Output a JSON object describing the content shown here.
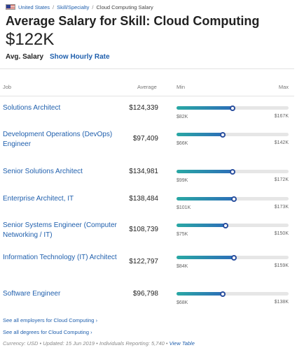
{
  "breadcrumb": {
    "country": "United States",
    "category": "Skill/Specialty",
    "current": "Cloud Computing Salary"
  },
  "header": {
    "title": "Average Salary for Skill: Cloud Computing",
    "avg_value": "$122K",
    "avg_label": "Avg. Salary",
    "hourly_link": "Show Hourly Rate"
  },
  "table": {
    "columns": {
      "job": "Job",
      "average": "Average",
      "min": "Min",
      "max": "Max"
    },
    "accent_start": "#29a8a4",
    "accent_end": "#2d6fb8",
    "rows": [
      {
        "job": "Solutions Architect",
        "average": "$124,339",
        "min": "$82K",
        "max": "$167K",
        "level": 0.5
      },
      {
        "job": "Development Operations (DevOps) Engineer",
        "average": "$97,409",
        "min": "$66K",
        "max": "$142K",
        "level": 0.41
      },
      {
        "job": "Senior Solutions Architect",
        "average": "$134,981",
        "min": "$99K",
        "max": "$172K",
        "level": 0.5
      },
      {
        "job": "Enterprise Architect, IT",
        "average": "$138,484",
        "min": "$101K",
        "max": "$173K",
        "level": 0.51
      },
      {
        "job": "Senior Systems Engineer (Computer Networking / IT)",
        "average": "$108,739",
        "min": "$75K",
        "max": "$150K",
        "level": 0.44
      },
      {
        "job": "Information Technology (IT) Architect",
        "average": "$122,797",
        "min": "$84K",
        "max": "$159K",
        "level": 0.51
      },
      {
        "job": "Software Engineer",
        "average": "$96,798",
        "min": "$68K",
        "max": "$138K",
        "level": 0.41
      }
    ]
  },
  "footer": {
    "employers_link": "See all employers for Cloud Computing ›",
    "degrees_link": "See all degrees for Cloud Computing ›",
    "meta_text": "Currency: USD • Updated: 15 Jun 2019 • Individuals Reporting: 5,740 •",
    "view_table": "View Table"
  }
}
